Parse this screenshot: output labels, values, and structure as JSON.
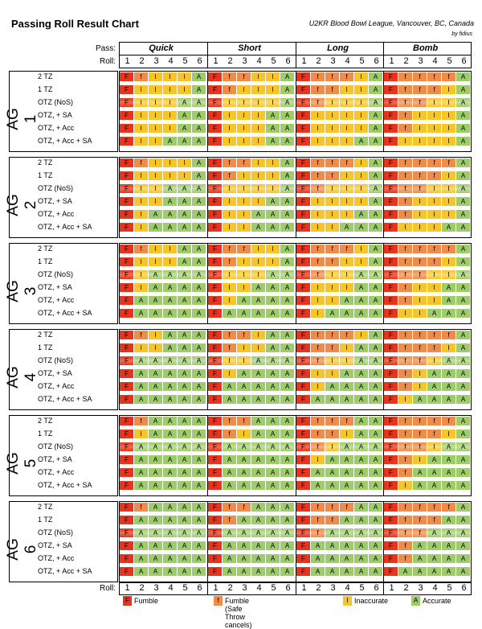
{
  "header": {
    "title": "Passing Roll Result Chart",
    "subtitle": "U2KR Blood Bowl League, Vancouver, BC, Canada",
    "byline": "by fidius",
    "pass_label": "Pass:",
    "roll_label": "Roll:",
    "passes": [
      "Quick",
      "Short",
      "Long",
      "Bomb"
    ],
    "rolls": [
      "1",
      "2",
      "3",
      "4",
      "5",
      "6"
    ]
  },
  "row_labels": [
    "2 TZ",
    "1 TZ",
    "OTZ (NoS)",
    "OTZ, + SA",
    "OTZ, + Acc",
    "OTZ, + Acc + SA"
  ],
  "colors": {
    "F": "#e8341c",
    "f": "#f08c4a",
    "I": "#f5c52a",
    "A": "#9fcc6a",
    "F_light": "#f26c52",
    "f_light": "#f5ae7c",
    "I_light": "#f9dc72",
    "A_light": "#c3e0a0"
  },
  "groups": [
    {
      "label": "AG 1",
      "rows": [
        [
          "FfIIIA",
          "FffIIA",
          "FfffIA",
          "FffffA"
        ],
        [
          "FIIIIA",
          "FfIIIA",
          "FffIIA",
          "FfffIA"
        ],
        [
          "FIIIAA",
          "FIIIIA",
          "FfIIIA",
          "FffIIA"
        ],
        [
          "FIIIAA",
          "FIIIAA",
          "FIIIIA",
          "FfIIIA"
        ],
        [
          "FIIIAA",
          "FIIIAA",
          "FIIIIA",
          "FfIIIA"
        ],
        [
          "FIIAAA",
          "FIIIAA",
          "FIIIAA",
          "FIIIIA"
        ]
      ]
    },
    {
      "label": "AG 2",
      "rows": [
        [
          "FfIIIA",
          "FffIIA",
          "FfffIA",
          "FffffA"
        ],
        [
          "FIIIIA",
          "FfIIIA",
          "FffIIA",
          "FfffIA"
        ],
        [
          "FIIAAA",
          "FIIIIA",
          "FfIIIA",
          "FffIIA"
        ],
        [
          "FIIAAA",
          "FIIIAA",
          "FIIIIA",
          "FfIIIA"
        ],
        [
          "FIAAAA",
          "FIIAAA",
          "FIIIAA",
          "FfIIIA"
        ],
        [
          "FIAAAA",
          "FIIAAA",
          "FIIAAA",
          "FIIIAA"
        ]
      ]
    },
    {
      "label": "AG 3",
      "rows": [
        [
          "FfIIAA",
          "FffIIA",
          "FfffIA",
          "FffffA"
        ],
        [
          "FIIIAA",
          "FfIIIA",
          "FffIIA",
          "FfffIA"
        ],
        [
          "FIAAAA",
          "FIIIAA",
          "FfIIAA",
          "FffIIA"
        ],
        [
          "FIAAAA",
          "FIIAAA",
          "FIIIAA",
          "FfIIAA"
        ],
        [
          "FAAAAA",
          "FIAAAA",
          "FIIAAA",
          "FfIIAA"
        ],
        [
          "FAAAAA",
          "FAAAAA",
          "FIAAAA",
          "FIIAAA"
        ]
      ]
    },
    {
      "label": "AG 4",
      "rows": [
        [
          "FfIAAA",
          "FffIAA",
          "FfffIA",
          "FffffA"
        ],
        [
          "FIIAAA",
          "FfIIAA",
          "FffIAA",
          "FfffIA"
        ],
        [
          "FAAAAA",
          "FIIAAA",
          "FfIIAA",
          "FffIAA"
        ],
        [
          "FAAAAA",
          "FIAAAA",
          "FIIAAA",
          "FfIAAA"
        ],
        [
          "FAAAAA",
          "FAAAAA",
          "FIAAAA",
          "FfIAAA"
        ],
        [
          "FAAAAA",
          "FAAAAA",
          "FAAAAA",
          "FIAAAA"
        ]
      ]
    },
    {
      "label": "AG 5",
      "rows": [
        [
          "FfAAAA",
          "FffAAA",
          "FfffAA",
          "FffffA"
        ],
        [
          "FIAAAA",
          "FfIAAA",
          "FffIAA",
          "FfffIA"
        ],
        [
          "FAAAAA",
          "FAAAAA",
          "FfIAAA",
          "FffIAA"
        ],
        [
          "FAAAAA",
          "FAAAAA",
          "FIAAAA",
          "FfIAAA"
        ],
        [
          "FAAAAA",
          "FAAAAA",
          "FAAAAA",
          "FfAAAA"
        ],
        [
          "FAAAAA",
          "FAAAAA",
          "FAAAAA",
          "FIAAAA"
        ]
      ]
    },
    {
      "label": "AG 6",
      "rows": [
        [
          "FfAAAA",
          "FffAAA",
          "FfffAA",
          "FffffA"
        ],
        [
          "FAAAAA",
          "FfAAAA",
          "FffAAA",
          "FfffAA"
        ],
        [
          "FAAAAA",
          "FAAAAA",
          "FfAAAA",
          "FffAAA"
        ],
        [
          "FAAAAA",
          "FAAAAA",
          "FAAAAA",
          "FfAAAA"
        ],
        [
          "FAAAAA",
          "FAAAAA",
          "FAAAAA",
          "FfAAAA"
        ],
        [
          "FAAAAA",
          "FAAAAA",
          "FAAAAA",
          "FAAAAA"
        ]
      ]
    }
  ],
  "legend": {
    "roll_label": "Roll:",
    "items": [
      {
        "code": "F",
        "text": "Fumble"
      },
      {
        "code": "f",
        "text": "Fumble (Safe Throw cancels)"
      },
      {
        "code": "I",
        "text": "Inaccurate"
      },
      {
        "code": "A",
        "text": "Accurate"
      }
    ]
  }
}
